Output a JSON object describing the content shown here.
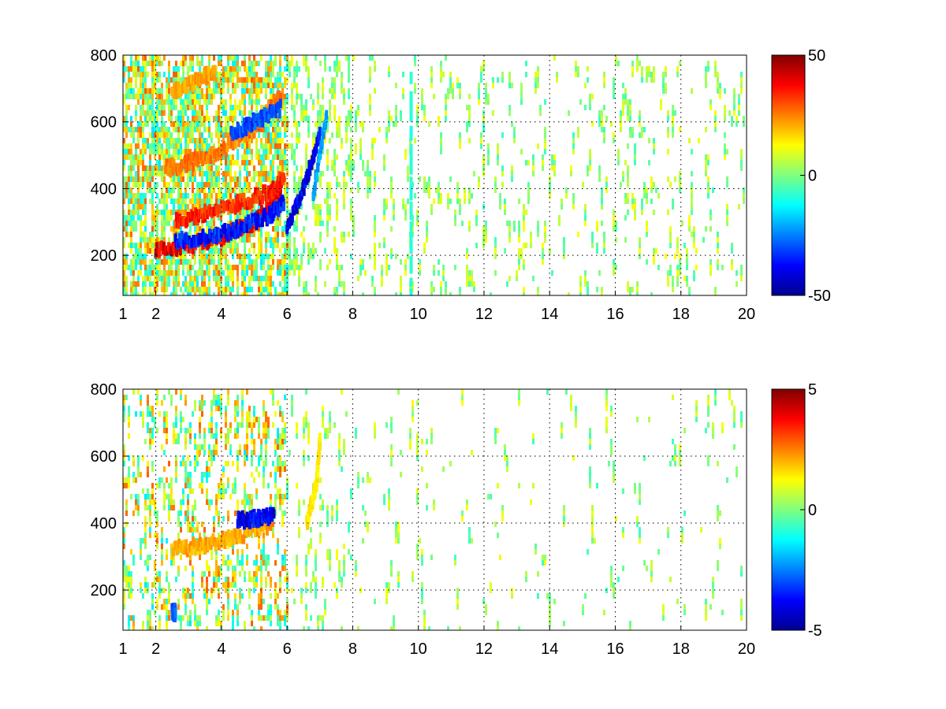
{
  "chart_data": [
    {
      "type": "heatmap",
      "title": "",
      "xlabel": "",
      "ylabel": "",
      "xlim": [
        1,
        20
      ],
      "ylim": [
        80,
        800
      ],
      "x_ticks": [
        "1",
        "2",
        "4",
        "6",
        "8",
        "10",
        "12",
        "14",
        "16",
        "18",
        "20"
      ],
      "y_ticks": [
        "200",
        "400",
        "600",
        "800"
      ],
      "grid": true,
      "colormap": "jet",
      "colorbar": {
        "min": -50,
        "max": 50,
        "ticks": [
          "50",
          "0",
          "-50"
        ]
      },
      "features": [
        {
          "name": "ridge-a",
          "value": 45,
          "x": [
            2.0,
            3.0,
            4.0,
            5.0,
            5.8
          ],
          "y": [
            215,
            230,
            255,
            300,
            380
          ]
        },
        {
          "name": "ridge-b",
          "value": -42,
          "x": [
            2.6,
            3.5,
            4.5,
            5.5,
            5.9
          ],
          "y": [
            240,
            255,
            280,
            320,
            360
          ]
        },
        {
          "name": "ridge-c",
          "value": 40,
          "x": [
            2.6,
            3.5,
            4.5,
            5.5,
            5.9
          ],
          "y": [
            300,
            325,
            355,
            390,
            440
          ]
        },
        {
          "name": "ridge-d",
          "value": 30,
          "x": [
            2.3,
            3.0,
            4.0,
            5.0,
            5.8
          ],
          "y": [
            460,
            475,
            515,
            580,
            680
          ]
        },
        {
          "name": "ridge-e",
          "value": -35,
          "x": [
            4.3,
            5.0,
            5.8
          ],
          "y": [
            560,
            600,
            640
          ]
        },
        {
          "name": "ridge-f",
          "value": 25,
          "x": [
            2.5,
            3.2,
            3.8
          ],
          "y": [
            690,
            720,
            750
          ]
        },
        {
          "name": "band-blue",
          "value": -45,
          "x": [
            6.0,
            6.5,
            7.0
          ],
          "y": [
            280,
            400,
            560
          ]
        },
        {
          "name": "band-cyan",
          "value": -25,
          "x": [
            6.8,
            7.2
          ],
          "y": [
            380,
            620
          ]
        },
        {
          "name": "stripe-9.8",
          "value": -10,
          "x": [
            9.78,
            9.78
          ],
          "y": [
            80,
            740
          ]
        }
      ]
    },
    {
      "type": "heatmap",
      "title": "",
      "xlabel": "",
      "ylabel": "",
      "xlim": [
        1,
        20
      ],
      "ylim": [
        80,
        800
      ],
      "x_ticks": [
        "1",
        "2",
        "4",
        "6",
        "8",
        "10",
        "12",
        "14",
        "16",
        "18",
        "20"
      ],
      "y_ticks": [
        "200",
        "400",
        "600",
        "800"
      ],
      "grid": true,
      "colormap": "jet",
      "colorbar": {
        "min": -5,
        "max": 5,
        "ticks": [
          "5",
          "0",
          "-5"
        ]
      },
      "features": [
        {
          "name": "band-orange",
          "value": 2.5,
          "x": [
            2.5,
            3.5,
            4.5,
            5.5
          ],
          "y": [
            320,
            335,
            360,
            395
          ]
        },
        {
          "name": "patch-blue",
          "value": -4.5,
          "x": [
            4.5,
            5.0,
            5.6
          ],
          "y": [
            410,
            412,
            420
          ]
        },
        {
          "name": "band-yellow",
          "value": 1.8,
          "x": [
            6.6,
            6.9,
            7.0
          ],
          "y": [
            400,
            520,
            640
          ]
        },
        {
          "name": "spot-blue",
          "value": -3.5,
          "x": [
            2.5,
            2.6
          ],
          "y": [
            130,
            135
          ]
        }
      ]
    }
  ]
}
